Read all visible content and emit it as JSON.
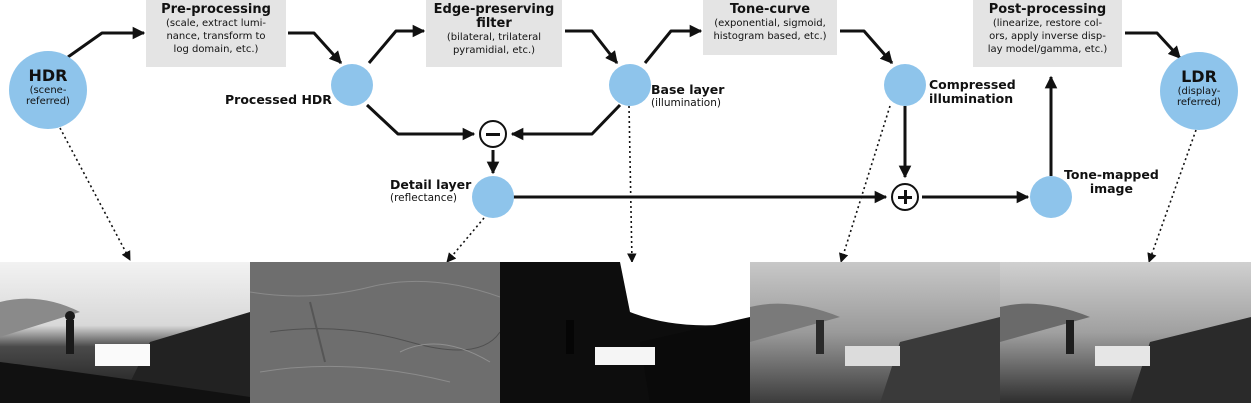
{
  "boxes": {
    "preprocessing": {
      "title": "Pre-processing",
      "line1": "(scale, extract lumi-",
      "line2": "nance, transform to",
      "line3": "log domain, etc.)"
    },
    "edge_filter": {
      "title1": "Edge-preserving",
      "title2": "filter",
      "line1": "(bilateral, trilateral",
      "line2": "pyramidial, etc.)"
    },
    "tone_curve": {
      "title": "Tone-curve",
      "line1": "(exponential, sigmoid,",
      "line2": "histogram based, etc.)"
    },
    "postprocessing": {
      "title": "Post-processing",
      "line1": "(linearize, restore col-",
      "line2": "ors, apply inverse disp-",
      "line3": "lay model/gamma, etc.)"
    }
  },
  "nodes": {
    "hdr": {
      "title": "HDR",
      "line1": "(scene-",
      "line2": "referred)"
    },
    "ldr": {
      "title": "LDR",
      "line1": "(display-",
      "line2": "referred)"
    }
  },
  "labels": {
    "processed_hdr": "Processed HDR",
    "base_layer": {
      "title": "Base layer",
      "sub": "(illumination)"
    },
    "compressed": {
      "line1": "Compressed",
      "line2": "illumination"
    },
    "detail_layer": {
      "title": "Detail layer",
      "sub": "(reflectance)"
    },
    "tone_mapped": {
      "line1": "Tone-mapped",
      "line2": "image"
    }
  },
  "operators": {
    "subtract": "minus",
    "add": "plus"
  },
  "colors": {
    "node_fill": "#8ec4eb",
    "box_fill": "#e4e4e4",
    "arrow": "#111111"
  },
  "photos": [
    {
      "name": "photo-hdr-input",
      "style": "gray-bright"
    },
    {
      "name": "photo-detail-layer",
      "style": "gray-texture"
    },
    {
      "name": "photo-base-layer",
      "style": "dark-high-contrast"
    },
    {
      "name": "photo-compressed",
      "style": "gray-soft"
    },
    {
      "name": "photo-tone-mapped",
      "style": "gray-balanced"
    }
  ]
}
